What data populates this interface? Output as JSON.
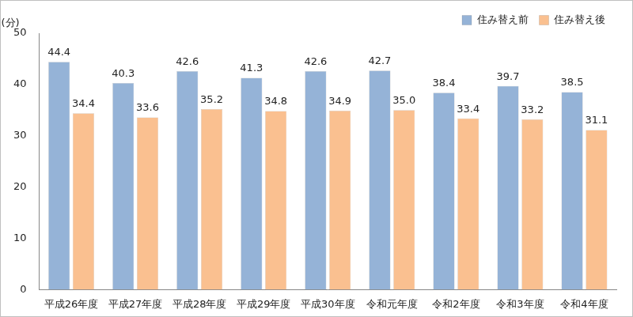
{
  "chart_data": {
    "type": "bar",
    "y_label": "(分)",
    "categories": [
      "平成26年度",
      "平成27年度",
      "平成28年度",
      "平成29年度",
      "平成30年度",
      "令和元年度",
      "令和2年度",
      "令和3年度",
      "令和4年度"
    ],
    "series": [
      {
        "name": "住み替え前",
        "color": "#95b3d7",
        "values": [
          44.4,
          40.3,
          42.6,
          41.3,
          42.6,
          42.7,
          38.4,
          39.7,
          38.5
        ],
        "value_labels": [
          "44.4",
          "40.3",
          "42.6",
          "41.3",
          "42.6",
          "42.7",
          "38.4",
          "39.7",
          "38.5"
        ]
      },
      {
        "name": "住み替え後",
        "color": "#fac090",
        "values": [
          34.4,
          33.6,
          35.2,
          34.8,
          34.9,
          35.0,
          33.4,
          33.2,
          31.1
        ],
        "value_labels": [
          "34.4",
          "33.6",
          "35.2",
          "34.8",
          "34.9",
          "35.0",
          "33.4",
          "33.2",
          "31.1"
        ]
      }
    ],
    "ylim": [
      0,
      50
    ],
    "yticks": [
      0,
      10,
      20,
      30,
      40,
      50
    ],
    "grid": false,
    "legend": "upper right",
    "data_labels": true
  }
}
